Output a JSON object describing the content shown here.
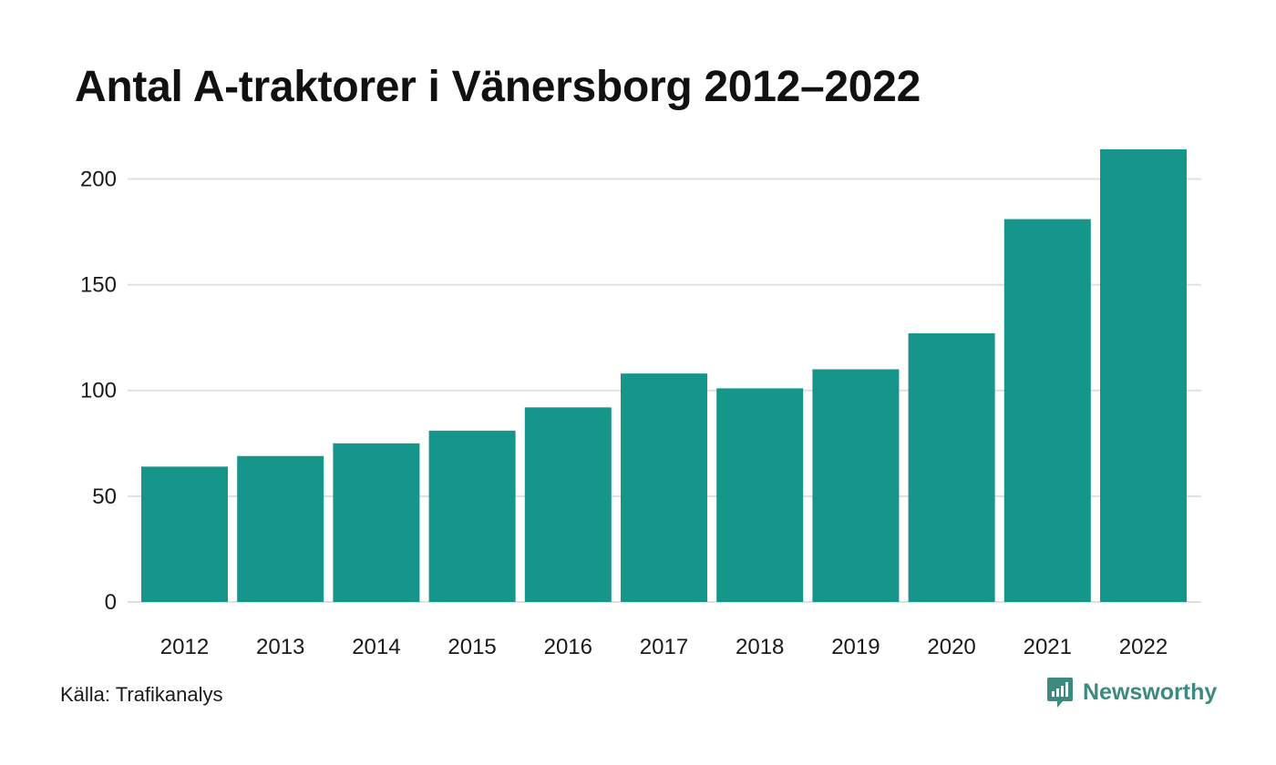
{
  "chart_data": {
    "type": "bar",
    "title": "Antal A-traktorer i Vänersborg 2012–2022",
    "categories": [
      "2012",
      "2013",
      "2014",
      "2015",
      "2016",
      "2017",
      "2018",
      "2019",
      "2020",
      "2021",
      "2022"
    ],
    "values": [
      64,
      69,
      75,
      81,
      92,
      108,
      101,
      110,
      127,
      181,
      214
    ],
    "ylim": [
      0,
      220
    ],
    "yticks": [
      0,
      50,
      100,
      150,
      200
    ],
    "xlabel": "",
    "ylabel": "",
    "grid": true,
    "bar_color": "#16968a",
    "grid_color": "#e0e0e0"
  },
  "footer": {
    "source": "Källa: Trafikanalys",
    "brand": "Newsworthy",
    "brand_icon": "newsworthy-logo-icon",
    "brand_color": "#3c8a80"
  }
}
